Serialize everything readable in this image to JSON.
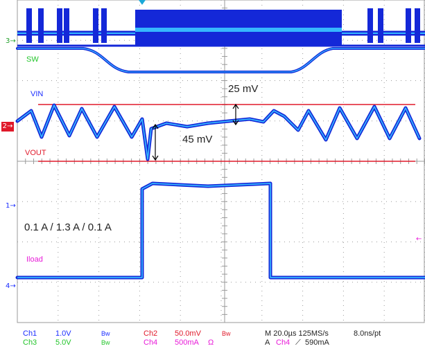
{
  "chart_data": {
    "type": "line",
    "title": "",
    "grid": true,
    "channel_markers": {
      "ch3": "3",
      "ch2": "2",
      "ch1": "1",
      "ch4": "4"
    },
    "trace_labels": {
      "sw": "SW",
      "vin": "VIN",
      "vout": "VOUT",
      "iload": "Iload"
    },
    "annotations": {
      "ripple": "25 mV",
      "droop": "45 mV",
      "load_step": "0.1 A / 1.3 A / 0.1 A"
    },
    "load_current_A": [
      0.1,
      1.3,
      0.1
    ],
    "colors": {
      "ch1": "#1a2cff",
      "ch2": "#e0192a",
      "ch3": "#22c52a",
      "ch4": "#e81ad8",
      "grid": "#9a9a9a",
      "trace_fill": "#1428d8",
      "trace_core": "#36b8ff"
    }
  },
  "status_bar": {
    "row1": {
      "ch1_name": "Ch1",
      "ch1_scale": "1.0V",
      "ch1_bw": "Bw",
      "ch2_name": "Ch2",
      "ch2_scale": "50.0mV",
      "ch2_bw": "Bw",
      "timebase": "M 20.0µs 125MS/s",
      "resolution": "8.0ns/pt"
    },
    "row2": {
      "ch3_name": "Ch3",
      "ch3_scale": "5.0V",
      "ch3_bw": "Bw",
      "ch4_name": "Ch4",
      "ch4_scale": "500mA",
      "ch4_unit": "Ω",
      "trigger_mode": "A",
      "trigger_source": "Ch4",
      "trigger_slope": "⟋",
      "trigger_level": "590mA"
    }
  }
}
